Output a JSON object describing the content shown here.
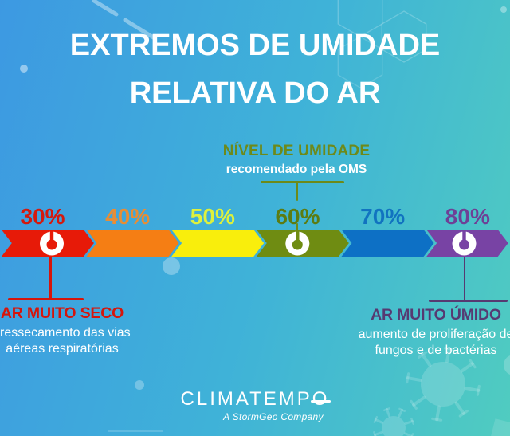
{
  "title": {
    "line1": "EXTREMOS DE UMIDADE",
    "line2": "RELATIVA DO AR"
  },
  "oms_callout": {
    "heading": "NÍVEL DE UMIDADE",
    "subheading": "recomendado pela OMS",
    "color": "#6d8a1a"
  },
  "scale": {
    "segments": [
      {
        "label": "30%",
        "color": "#e71a08",
        "label_color": "#d4190e",
        "icon": true
      },
      {
        "label": "40%",
        "color": "#f57e14",
        "label_color": "#e78d35",
        "icon": false
      },
      {
        "label": "50%",
        "color": "#f9ee0c",
        "label_color": "#ddf13c",
        "icon": false
      },
      {
        "label": "60%",
        "color": "#6f8c12",
        "label_color": "#5c7c12",
        "icon": true
      },
      {
        "label": "70%",
        "color": "#0d70c5",
        "label_color": "#1173c0",
        "icon": false
      },
      {
        "label": "80%",
        "color": "#7843a4",
        "label_color": "#6e4096",
        "icon": true
      }
    ]
  },
  "callout_dry": {
    "heading": "AR MUITO SECO",
    "line1": "ressecamento das vias",
    "line2": "aéreas respiratórias",
    "color": "#d6150b"
  },
  "callout_humid": {
    "heading": "AR MUITO ÚMIDO",
    "line1": "aumento de proliferação de",
    "line2": "fungos e de bactérias",
    "color": "#563a72"
  },
  "footer": {
    "logo": "CLIMATEMPO",
    "tagline": "A StormGeo Company"
  }
}
